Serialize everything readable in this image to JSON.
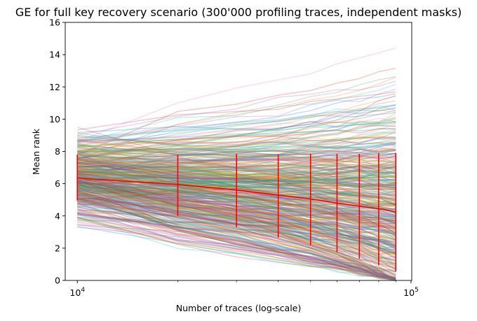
{
  "chart_data": {
    "type": "line",
    "title": "GE for full key recovery scenario (300'000 profiling traces, independent masks)",
    "xlabel": "Number of traces (log-scale)",
    "ylabel": "Mean rank",
    "xscale": "log",
    "xlim": [
      9200,
      100500
    ],
    "ylim": [
      0,
      16
    ],
    "x_tick_labels": [
      {
        "value": 10000,
        "base": "10",
        "exp": "4"
      },
      {
        "value": 100000,
        "base": "10",
        "exp": "5"
      }
    ],
    "y_ticks": [
      0,
      2,
      4,
      6,
      8,
      10,
      12,
      14,
      16
    ],
    "grid": false,
    "legend": "none",
    "x": [
      10000,
      20000,
      30000,
      40000,
      50000,
      60000,
      70000,
      80000,
      90000
    ],
    "mean_series": {
      "color": "#ff0000",
      "values": [
        6.35,
        5.95,
        5.6,
        5.3,
        5.05,
        4.8,
        4.6,
        4.45,
        4.25
      ]
    },
    "error_bars": {
      "color": "#ff0000",
      "lower": [
        4.95,
        4.0,
        3.3,
        2.65,
        2.2,
        1.75,
        1.35,
        0.95,
        0.55
      ],
      "upper": [
        7.8,
        7.8,
        7.85,
        7.8,
        7.85,
        7.85,
        7.85,
        7.9,
        7.9
      ]
    },
    "individual_runs": {
      "count": 500,
      "opacity": 0.25,
      "start_range": [
        3.1,
        10.4
      ],
      "end_range": [
        0,
        14.7
      ],
      "palette": [
        "#1f77b4",
        "#ff7f0e",
        "#2ca02c",
        "#d62728",
        "#9467bd",
        "#8c564b",
        "#e377c2",
        "#7f7f7f",
        "#bcbd22",
        "#17becf"
      ]
    }
  }
}
